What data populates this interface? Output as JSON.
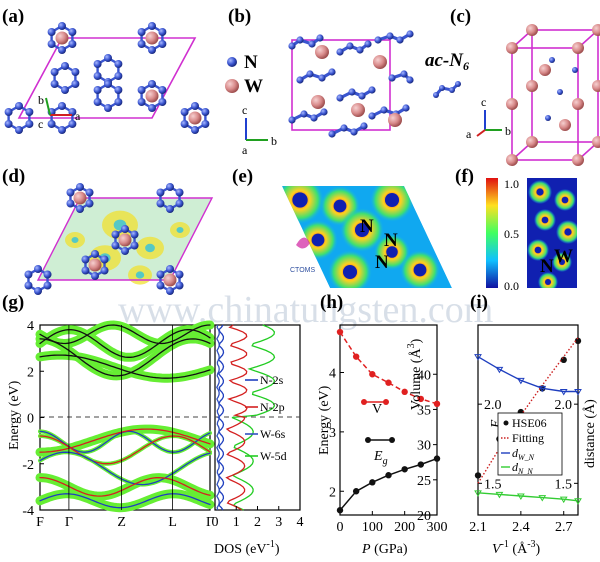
{
  "panels": {
    "a": {
      "label": "(a)",
      "axes": [
        "b",
        "c",
        "a"
      ]
    },
    "b": {
      "label": "(b)",
      "legend": [
        "N",
        "W"
      ],
      "axes": [
        "c",
        "a",
        "b"
      ]
    },
    "c": {
      "label": "(c)",
      "unit_label": "ac-N",
      "unit_sub": "6",
      "axes": [
        "c",
        "a",
        "b"
      ]
    },
    "d": {
      "label": "(d)"
    },
    "e": {
      "label": "(e)",
      "atom_labels": [
        "N",
        "N",
        "N"
      ]
    },
    "f": {
      "label": "(f)",
      "colorbar_ticks": [
        "1.0",
        "0.5",
        "0.0"
      ],
      "atom_labels": [
        "N",
        "W"
      ]
    },
    "g": {
      "label": "(g)",
      "ylabel": "Energy (eV)",
      "yticks": [
        "4",
        "2",
        "0",
        "-2",
        "-4"
      ],
      "kpoints": [
        "F",
        "Γ",
        "Z",
        "L",
        "Γ"
      ],
      "dos_xlabel": "DOS (eV",
      "dos_xlabel_sup": "-1",
      "dos_xticks": [
        "0",
        "1",
        "2",
        "3",
        "4"
      ],
      "legend": [
        "N-2s",
        "N-2p",
        "W-6s",
        "W-5d"
      ],
      "colors": {
        "N-2s": "#1f3fbf",
        "N-2p": "#d42020",
        "W-6s": "#3050c0",
        "W-5d": "#22cc22",
        "bands": "#111111",
        "fat": "#66ee33"
      }
    },
    "h": {
      "label": "(h)",
      "ylabel_left": "Energy (eV)",
      "ylabel_right": "Volume (Å",
      "ylabel_right_sup": "3",
      "xlabel": "P",
      "xlabel_unit": "(GPa)",
      "xticks": [
        "0",
        "100",
        "200",
        "300"
      ],
      "yticks_left": [
        "2",
        "3",
        "4"
      ],
      "yticks_right": [
        "20",
        "25",
        "30",
        "35",
        "40"
      ],
      "series_labels": [
        "V",
        "E"
      ],
      "series_sub": "g"
    },
    "i": {
      "label": "(i)",
      "xlabel": "V",
      "xlabel_sup": "-1",
      "xlabel_unit": "(Å",
      "xlabel_unit_sup": "-3",
      "xticks": [
        "2.1",
        "2.4",
        "2.7"
      ],
      "ylabel_left": "E",
      "ylabel_left_sub": "g",
      "ylabel_right": "distance (Å)",
      "yticks_left": [
        "1.5",
        "2.0"
      ],
      "yticks_right": [
        "1.5",
        "2.0"
      ],
      "legend": [
        "HSE06",
        "Fitting",
        "d",
        "d"
      ],
      "legend_subs": [
        "W_N",
        "N_N"
      ]
    }
  },
  "watermark": "www.chinatungsten.com",
  "chart_data": [
    {
      "type": "line",
      "panel": "h",
      "x": [
        0,
        50,
        100,
        150,
        200,
        250,
        300
      ],
      "xlim": [
        0,
        300
      ],
      "series": [
        {
          "name": "V",
          "axis": "right",
          "values": [
            46,
            42.5,
            40,
            38.8,
            37.5,
            36.5,
            35.8
          ],
          "color": "#e02020",
          "style": "dashed"
        },
        {
          "name": "Eg",
          "axis": "left",
          "values": [
            1.68,
            2.0,
            2.15,
            2.27,
            2.37,
            2.45,
            2.55
          ],
          "color": "#111111",
          "style": "solid"
        }
      ],
      "ylim_left": [
        1.6,
        4.8
      ],
      "ylim_right": [
        20,
        47
      ]
    },
    {
      "type": "line",
      "panel": "i",
      "x": [
        2.1,
        2.25,
        2.4,
        2.55,
        2.7,
        2.8
      ],
      "xlim": [
        2.1,
        2.8
      ],
      "series": [
        {
          "name": "HSE06",
          "values": [
            1.55,
            1.78,
            1.95,
            2.1,
            2.28,
            2.4
          ],
          "color": "#111111",
          "style": "points"
        },
        {
          "name": "Fitting",
          "values": [
            1.5,
            1.72,
            1.93,
            2.12,
            2.3,
            2.42
          ],
          "color": "#cc2020",
          "style": "dotted"
        },
        {
          "name": "dW_N",
          "values": [
            2.3,
            2.22,
            2.15,
            2.1,
            2.08,
            2.08
          ],
          "color": "#1f3fbf",
          "style": "line-markers"
        },
        {
          "name": "dN_N",
          "values": [
            1.44,
            1.43,
            1.42,
            1.41,
            1.4,
            1.39
          ],
          "color": "#33cc33",
          "style": "line-markers"
        }
      ],
      "ylim": [
        1.3,
        2.5
      ]
    }
  ]
}
